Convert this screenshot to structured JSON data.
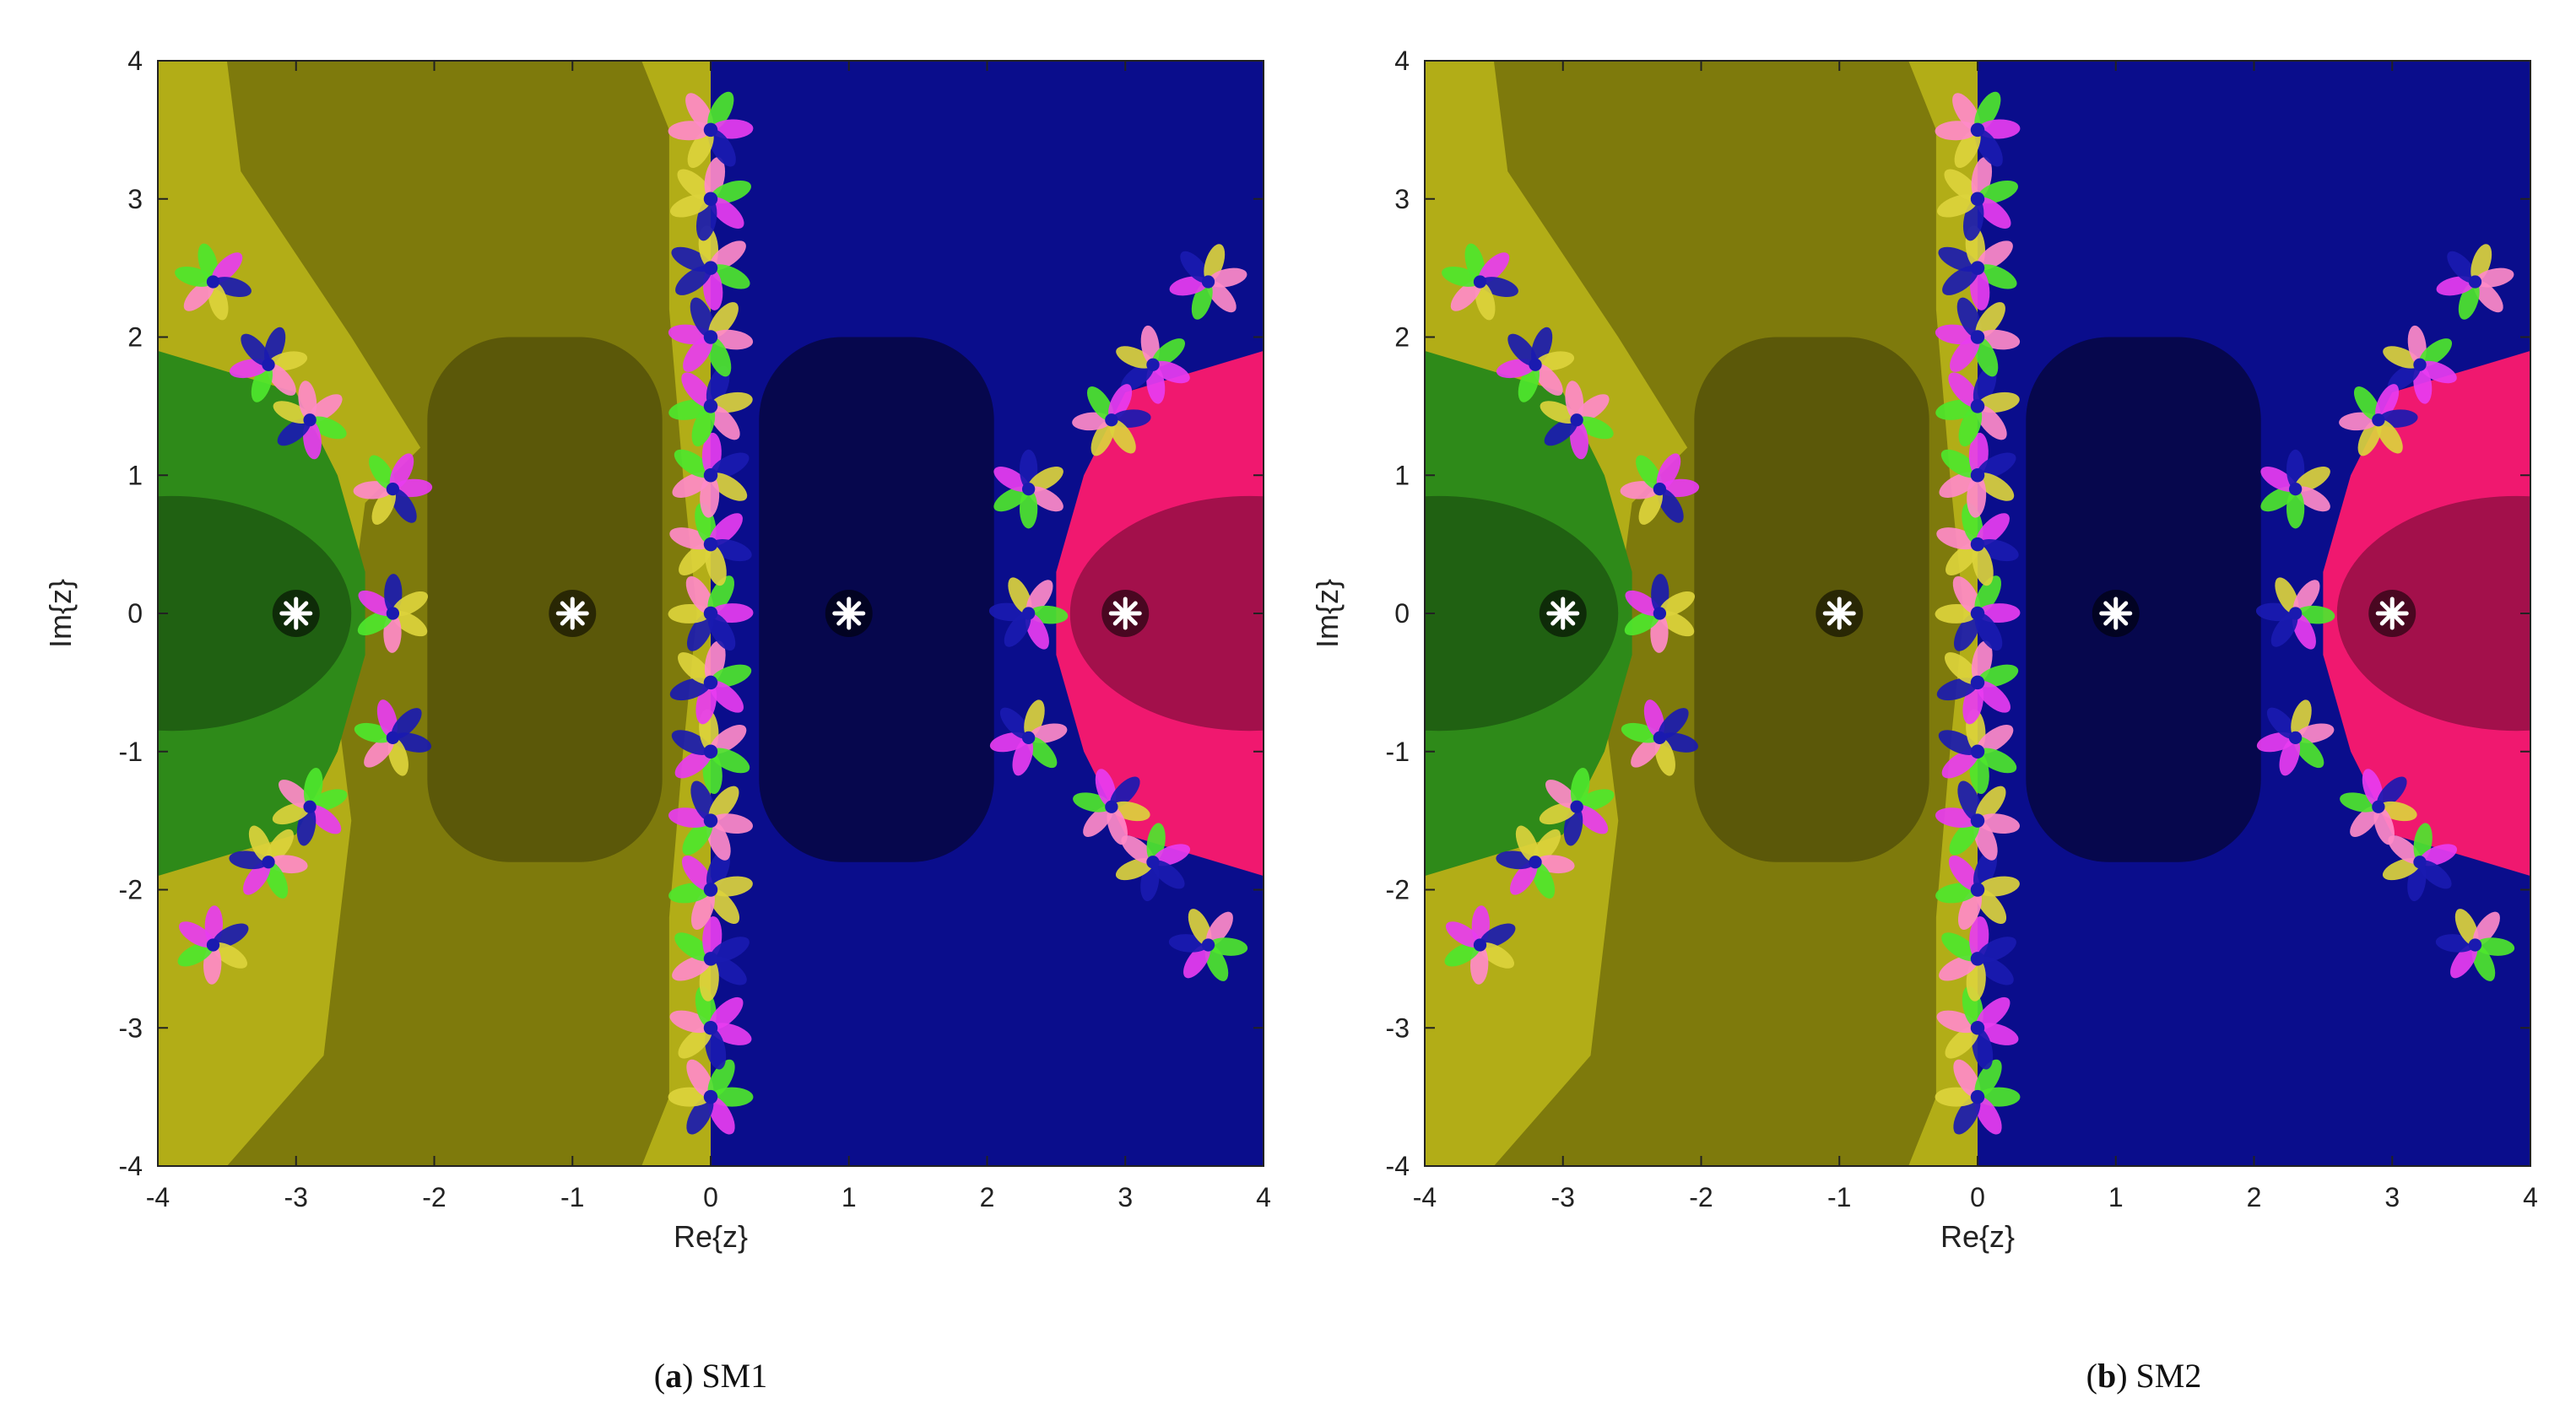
{
  "chart_data": [
    {
      "type": "heatmap",
      "caption_letter": "a",
      "caption_text": "SM1",
      "xlabel": "Re{z}",
      "ylabel": "Im{z}",
      "xlim": [
        -4,
        4
      ],
      "ylim": [
        -4,
        4
      ],
      "xticks": [
        -4,
        -3,
        -2,
        -1,
        0,
        1,
        2,
        3,
        4
      ],
      "yticks": [
        -4,
        -3,
        -2,
        -1,
        0,
        1,
        2,
        3,
        4
      ],
      "roots": [
        {
          "x": -3,
          "y": 0
        },
        {
          "x": -1,
          "y": 0
        },
        {
          "x": 1,
          "y": 0
        },
        {
          "x": 3,
          "y": 0
        }
      ],
      "basin_colors": {
        "root_-3": "#2e8a19",
        "root_-1": "#7e7a0c",
        "root_1": "#0a0d8c",
        "root_3": "#f0186f"
      },
      "fractal_colors": [
        "#4ee62c",
        "#e83cf0",
        "#1a1ab0",
        "#dcd23c",
        "#ff8ac8"
      ]
    },
    {
      "type": "heatmap",
      "caption_letter": "b",
      "caption_text": "SM2",
      "xlabel": "Re{z}",
      "ylabel": "Im{z}",
      "xlim": [
        -4,
        4
      ],
      "ylim": [
        -4,
        4
      ],
      "xticks": [
        -4,
        -3,
        -2,
        -1,
        0,
        1,
        2,
        3,
        4
      ],
      "yticks": [
        -4,
        -3,
        -2,
        -1,
        0,
        1,
        2,
        3,
        4
      ],
      "roots": [
        {
          "x": -3,
          "y": 0
        },
        {
          "x": -1,
          "y": 0
        },
        {
          "x": 1,
          "y": 0
        },
        {
          "x": 3,
          "y": 0
        }
      ],
      "basin_colors": {
        "root_-3": "#2e8a19",
        "root_-1": "#7e7a0c",
        "root_1": "#0a0d8c",
        "root_3": "#f0186f"
      },
      "fractal_colors": [
        "#4ee62c",
        "#e83cf0",
        "#1a1ab0",
        "#dcd23c",
        "#ff8ac8"
      ]
    }
  ]
}
